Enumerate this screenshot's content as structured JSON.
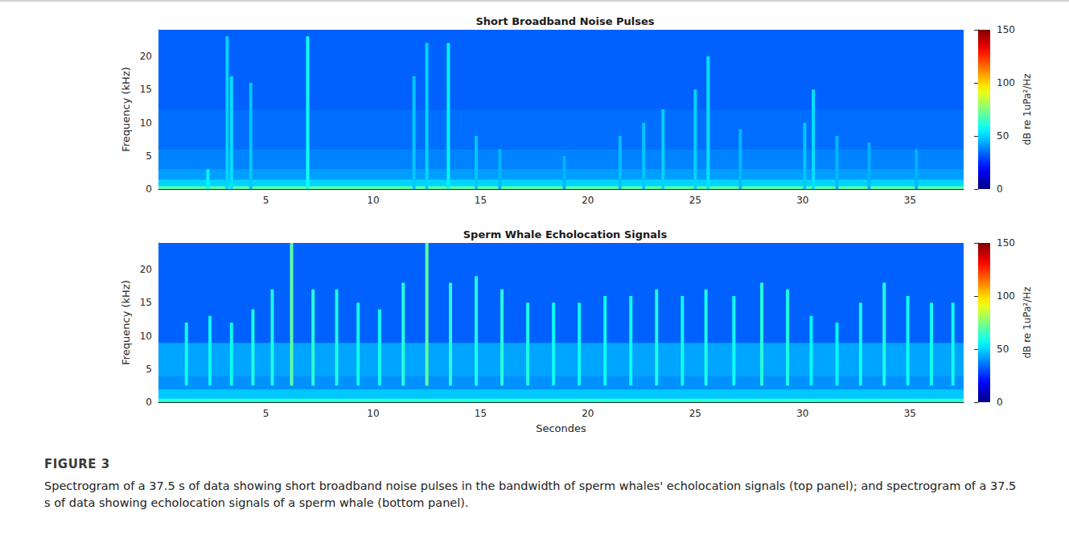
{
  "chart_data": [
    {
      "type": "heatmap",
      "title": "Short Broadband Noise Pulses",
      "y_label": "Frequency (kHz)",
      "xlim": [
        0,
        37.5
      ],
      "xticks": [
        5,
        10,
        15,
        20,
        25,
        30,
        35
      ],
      "ylim": [
        0,
        24
      ],
      "yticks": [
        0,
        5,
        10,
        15,
        20
      ],
      "background": [
        {
          "f": [
            0,
            0.5
          ],
          "level": 70
        },
        {
          "f": [
            0.5,
            1.5
          ],
          "level": 50
        },
        {
          "f": [
            1.5,
            3
          ],
          "level": 42
        },
        {
          "f": [
            3,
            6
          ],
          "level": 38
        },
        {
          "f": [
            6,
            12
          ],
          "level": 35
        },
        {
          "f": [
            12,
            24
          ],
          "level": 33
        }
      ],
      "pulses": [
        {
          "t": 2.3,
          "f": [
            0,
            3
          ],
          "level": 55
        },
        {
          "t": 3.2,
          "f": [
            0,
            23
          ],
          "level": 50
        },
        {
          "t": 3.4,
          "f": [
            0,
            17
          ],
          "level": 52
        },
        {
          "t": 4.3,
          "f": [
            0,
            16
          ],
          "level": 48
        },
        {
          "t": 6.95,
          "f": [
            0,
            23
          ],
          "level": 58
        },
        {
          "t": 11.9,
          "f": [
            0,
            17
          ],
          "level": 48
        },
        {
          "t": 12.5,
          "f": [
            0,
            22
          ],
          "level": 50
        },
        {
          "t": 13.5,
          "f": [
            0,
            22
          ],
          "level": 55
        },
        {
          "t": 14.8,
          "f": [
            0,
            8
          ],
          "level": 48
        },
        {
          "t": 15.9,
          "f": [
            0,
            6
          ],
          "level": 46
        },
        {
          "t": 18.9,
          "f": [
            0,
            5
          ],
          "level": 45
        },
        {
          "t": 21.5,
          "f": [
            0,
            8
          ],
          "level": 47
        },
        {
          "t": 22.6,
          "f": [
            0,
            10
          ],
          "level": 48
        },
        {
          "t": 23.5,
          "f": [
            0,
            12
          ],
          "level": 50
        },
        {
          "t": 25.0,
          "f": [
            0,
            15
          ],
          "level": 50
        },
        {
          "t": 25.6,
          "f": [
            0,
            20
          ],
          "level": 52
        },
        {
          "t": 27.1,
          "f": [
            0,
            9
          ],
          "level": 46
        },
        {
          "t": 30.1,
          "f": [
            0,
            10
          ],
          "level": 48
        },
        {
          "t": 30.5,
          "f": [
            0,
            15
          ],
          "level": 52
        },
        {
          "t": 31.6,
          "f": [
            0,
            8
          ],
          "level": 46
        },
        {
          "t": 33.1,
          "f": [
            0,
            7
          ],
          "level": 45
        },
        {
          "t": 35.3,
          "f": [
            0,
            6
          ],
          "level": 45
        }
      ],
      "colorbar": {
        "label": "dB re 1uPa²/Hz",
        "range": [
          0,
          150
        ],
        "ticks": [
          0,
          50,
          100,
          150
        ]
      }
    },
    {
      "type": "heatmap",
      "title": "Sperm Whale Echolocation Signals",
      "x_label": "Secondes",
      "y_label": "Frequency (kHz)",
      "xlim": [
        0,
        37.5
      ],
      "xticks": [
        5,
        10,
        15,
        20,
        25,
        30,
        35
      ],
      "ylim": [
        0,
        24
      ],
      "yticks": [
        0,
        5,
        10,
        15,
        20
      ],
      "background": [
        {
          "f": [
            0,
            0.6
          ],
          "level": 62
        },
        {
          "f": [
            0.6,
            2
          ],
          "level": 48
        },
        {
          "f": [
            2,
            4
          ],
          "level": 40
        },
        {
          "f": [
            4,
            9
          ],
          "level": 43
        },
        {
          "f": [
            9,
            24
          ],
          "level": 33
        }
      ],
      "pulses": [
        {
          "t": 1.3,
          "f": [
            2.5,
            12
          ],
          "level": 58
        },
        {
          "t": 2.4,
          "f": [
            2.5,
            13
          ],
          "level": 58
        },
        {
          "t": 3.4,
          "f": [
            2.5,
            12
          ],
          "level": 58
        },
        {
          "t": 4.4,
          "f": [
            2.5,
            14
          ],
          "level": 60
        },
        {
          "t": 5.3,
          "f": [
            2.5,
            17
          ],
          "level": 60
        },
        {
          "t": 6.2,
          "f": [
            2.5,
            24
          ],
          "level": 70
        },
        {
          "t": 7.2,
          "f": [
            2.5,
            17
          ],
          "level": 62
        },
        {
          "t": 8.3,
          "f": [
            2.5,
            17
          ],
          "level": 60
        },
        {
          "t": 9.3,
          "f": [
            2.5,
            15
          ],
          "level": 58
        },
        {
          "t": 10.3,
          "f": [
            2.5,
            14
          ],
          "level": 58
        },
        {
          "t": 11.4,
          "f": [
            2.5,
            18
          ],
          "level": 62
        },
        {
          "t": 12.5,
          "f": [
            2.5,
            24
          ],
          "level": 70
        },
        {
          "t": 13.6,
          "f": [
            2.5,
            18
          ],
          "level": 62
        },
        {
          "t": 14.8,
          "f": [
            2.5,
            19
          ],
          "level": 60
        },
        {
          "t": 16.0,
          "f": [
            2.5,
            17
          ],
          "level": 62
        },
        {
          "t": 17.2,
          "f": [
            2.5,
            15
          ],
          "level": 60
        },
        {
          "t": 18.4,
          "f": [
            2.5,
            15
          ],
          "level": 58
        },
        {
          "t": 19.6,
          "f": [
            2.5,
            15
          ],
          "level": 58
        },
        {
          "t": 20.8,
          "f": [
            2.5,
            16
          ],
          "level": 58
        },
        {
          "t": 22.0,
          "f": [
            2.5,
            16
          ],
          "level": 58
        },
        {
          "t": 23.2,
          "f": [
            2.5,
            17
          ],
          "level": 60
        },
        {
          "t": 24.4,
          "f": [
            2.5,
            16
          ],
          "level": 58
        },
        {
          "t": 25.5,
          "f": [
            2.5,
            17
          ],
          "level": 60
        },
        {
          "t": 26.8,
          "f": [
            2.5,
            16
          ],
          "level": 58
        },
        {
          "t": 28.1,
          "f": [
            2.5,
            18
          ],
          "level": 62
        },
        {
          "t": 29.3,
          "f": [
            2.5,
            17
          ],
          "level": 60
        },
        {
          "t": 30.4,
          "f": [
            2.5,
            13
          ],
          "level": 56
        },
        {
          "t": 31.6,
          "f": [
            2.5,
            12
          ],
          "level": 56
        },
        {
          "t": 32.7,
          "f": [
            2.5,
            15
          ],
          "level": 58
        },
        {
          "t": 33.8,
          "f": [
            2.5,
            18
          ],
          "level": 60
        },
        {
          "t": 34.9,
          "f": [
            2.5,
            16
          ],
          "level": 58
        },
        {
          "t": 36.0,
          "f": [
            2.5,
            15
          ],
          "level": 58
        },
        {
          "t": 37.0,
          "f": [
            2.5,
            15
          ],
          "level": 58
        }
      ],
      "colorbar": {
        "label": "dB re 1uPa²/Hz",
        "range": [
          0,
          150
        ],
        "ticks": [
          0,
          50,
          100,
          150
        ]
      }
    }
  ],
  "caption": {
    "label": "FIGURE 3",
    "text": "Spectrogram of a 37.5 s of data showing short broadband noise pulses in the bandwidth of sperm whales' echolocation signals (top panel); and spectrogram of a 37.5 s of data showing echolocation signals of a sperm whale (bottom panel)."
  }
}
